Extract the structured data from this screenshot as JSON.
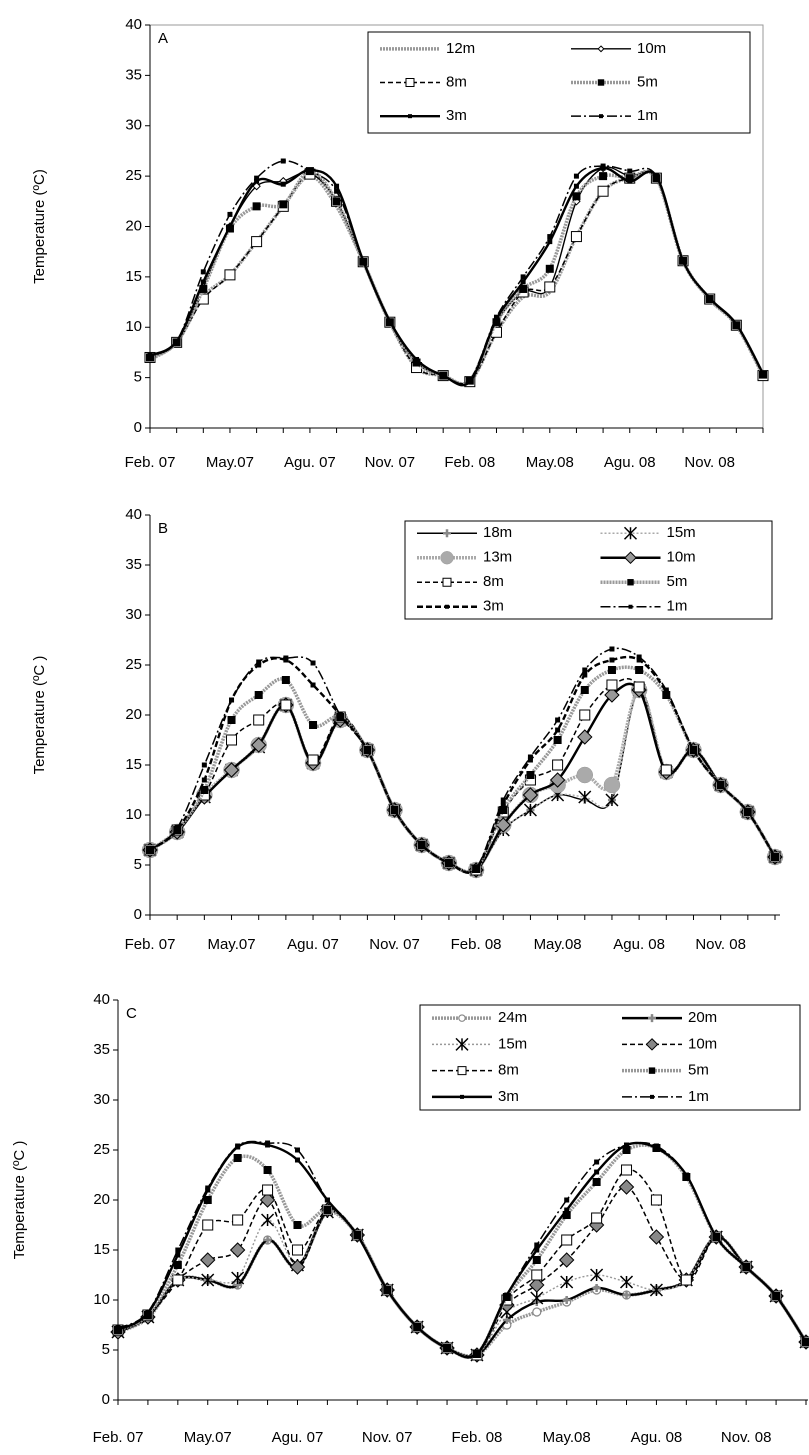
{
  "chart_data": [
    {
      "type": "line",
      "panel_label": "A",
      "y_label": "Temperature (ºC)",
      "legend": "upper right",
      "frame": true,
      "categories": [
        "Feb. 07",
        null,
        null,
        "May.07",
        null,
        null,
        "Agu. 07",
        null,
        null,
        "Nov. 07",
        null,
        null,
        "Feb. 08",
        null,
        null,
        "May.08",
        null,
        null,
        "Agu. 08",
        null,
        null,
        "Nov. 08",
        null,
        null
      ],
      "ylim": [
        0,
        40
      ],
      "yticks": [
        0,
        5,
        10,
        15,
        20,
        25,
        30,
        35,
        40
      ],
      "series": [
        {
          "name": "12m",
          "color": "#999999",
          "dash": "dot-thick",
          "marker": "none",
          "marker_color": "#999999",
          "values": [
            6.8,
            8.5,
            13,
            15.2,
            18.5,
            22,
            25,
            22,
            16.5,
            10.5,
            6,
            5.2,
            4.6,
            9.5,
            13,
            13.5,
            19,
            23.5,
            24.8,
            24.8,
            16.6,
            12.8,
            10.2,
            5.2
          ]
        },
        {
          "name": "10m",
          "color": "#000000",
          "dash": "solid",
          "marker": "diamond-small",
          "marker_color": "#000000",
          "values": [
            7,
            8.5,
            14,
            20,
            24,
            24.5,
            25.3,
            22.5,
            16.5,
            10.5,
            6.5,
            5.2,
            4.7,
            10.5,
            13.5,
            14,
            22.5,
            25.8,
            25,
            24.8,
            16.6,
            12.8,
            10.2,
            5.3
          ]
        },
        {
          "name": "8m",
          "color": "#000000",
          "dash": "dash",
          "marker": "square-open",
          "marker_color": "#000000",
          "values": [
            7,
            8.5,
            12.8,
            15.2,
            18.5,
            22,
            25.2,
            22.5,
            16.5,
            10.5,
            6,
            5.2,
            4.6,
            9.5,
            13.5,
            14,
            19,
            23.5,
            24.8,
            24.8,
            16.6,
            12.8,
            10.2,
            5.2
          ]
        },
        {
          "name": "5m",
          "color": "#999999",
          "dash": "dot-thick",
          "marker": "square",
          "marker_color": "#000000",
          "values": [
            7,
            8.5,
            13.8,
            19.8,
            22,
            22.2,
            25.5,
            22.5,
            16.5,
            10.5,
            6.5,
            5.2,
            4.7,
            10.5,
            13.8,
            15.8,
            23,
            25,
            24.8,
            24.8,
            16.6,
            12.8,
            10.2,
            5.3
          ]
        },
        {
          "name": "3m",
          "color": "#000000",
          "dash": "solid-thick",
          "marker": "square-small",
          "marker_color": "#000000",
          "values": [
            7.2,
            8.6,
            14.5,
            20,
            24.5,
            24.2,
            25.6,
            24,
            16.6,
            10.6,
            6.8,
            5.2,
            4.6,
            10.8,
            14.5,
            18.5,
            24,
            25.8,
            24.5,
            25,
            16.6,
            12.9,
            10.3,
            5.4
          ]
        },
        {
          "name": "1m",
          "color": "#000000",
          "dash": "dashdot",
          "marker": "square-small",
          "marker_color": "#000000",
          "values": [
            7.2,
            8.6,
            15.5,
            21.2,
            24.8,
            26.5,
            25.5,
            23.5,
            16.6,
            10.6,
            6.8,
            5.2,
            4.8,
            11,
            15,
            19,
            25,
            26,
            25.5,
            25,
            16.6,
            12.9,
            10.3,
            5.4
          ]
        }
      ]
    },
    {
      "type": "line",
      "panel_label": "B",
      "y_label": "Temperature (ºC )",
      "legend": "upper right",
      "frame": false,
      "categories": [
        "Feb. 07",
        null,
        null,
        "May.07",
        null,
        null,
        "Agu. 07",
        null,
        null,
        "Nov. 07",
        null,
        null,
        "Feb. 08",
        null,
        null,
        "May.08",
        null,
        null,
        "Agu. 08",
        null,
        null,
        "Nov. 08",
        null,
        null
      ],
      "ylim": [
        0,
        40
      ],
      "yticks": [
        0,
        5,
        10,
        15,
        20,
        25,
        30,
        35,
        40
      ],
      "series": [
        {
          "name": "18m",
          "color": "#000000",
          "dash": "solid",
          "marker": "plus",
          "marker_color": "#888888",
          "values": [
            6.5,
            8.3,
            11.8,
            14.5,
            16.8,
            21,
            15,
            19.5,
            16.5,
            10.5,
            7,
            5.2,
            4.5,
            8.5,
            10.5,
            12,
            11.5,
            11.5,
            22.5,
            14.3,
            16.5,
            13,
            10.3,
            5.8
          ]
        },
        {
          "name": "15m",
          "color": "#aaaaaa",
          "dash": "dot",
          "marker": "star",
          "marker_color": "#000000",
          "values": [
            6.5,
            8.3,
            11.8,
            14.5,
            16.8,
            21,
            15.2,
            19.5,
            16.5,
            10.5,
            7,
            5.2,
            4.5,
            8.5,
            10.5,
            12,
            11.8,
            11.5,
            22.5,
            14.3,
            16.5,
            13,
            10.3,
            5.8
          ]
        },
        {
          "name": "13m",
          "color": "#aaaaaa",
          "dash": "dot-thick",
          "marker": "circle",
          "marker_color": "#aaaaaa",
          "values": [
            6.5,
            8.3,
            12,
            14.5,
            17,
            21,
            15.2,
            19.5,
            16.5,
            10.5,
            7,
            5.2,
            4.5,
            9,
            12,
            13,
            14,
            13,
            22.5,
            14.3,
            16.5,
            13,
            10.3,
            5.8
          ]
        },
        {
          "name": "10m",
          "color": "#000000",
          "dash": "solid-thick",
          "marker": "diamond",
          "marker_color": "#999999",
          "values": [
            6.5,
            8.3,
            11.8,
            14.5,
            17,
            21,
            15.2,
            19.5,
            16.5,
            10.5,
            7,
            5.2,
            4.5,
            9,
            12,
            13.5,
            17.8,
            22,
            22.5,
            14.3,
            16.5,
            13,
            10.3,
            5.8
          ]
        },
        {
          "name": "8m",
          "color": "#000000",
          "dash": "dash",
          "marker": "square-open",
          "marker_color": "#000000",
          "values": [
            6.5,
            8.5,
            12,
            17.5,
            19.5,
            21,
            15.5,
            19.8,
            16.5,
            10.5,
            7,
            5.2,
            4.5,
            10.3,
            13.5,
            15,
            20,
            23,
            22.8,
            14.5,
            16.5,
            13,
            10.3,
            5.8
          ]
        },
        {
          "name": "5m",
          "color": "#999999",
          "dash": "dot-thick",
          "marker": "square",
          "marker_color": "#000000",
          "values": [
            6.5,
            8.5,
            12.5,
            19.5,
            22,
            23.5,
            19,
            19.8,
            16.5,
            10.5,
            7,
            5.2,
            4.6,
            10.5,
            14,
            17.5,
            22.5,
            24.5,
            24.5,
            22,
            16.5,
            13,
            10.3,
            5.8
          ]
        },
        {
          "name": "3m",
          "color": "#000000",
          "dash": "dash-thick",
          "marker": "square-small",
          "marker_color": "#000000",
          "values": [
            6.5,
            8.5,
            13.5,
            21.5,
            25,
            25.5,
            23,
            20,
            16.5,
            10.5,
            7,
            5.2,
            4.6,
            11,
            15.5,
            18.5,
            24,
            25.5,
            25.5,
            22.3,
            16.5,
            13,
            10.3,
            5.8
          ]
        },
        {
          "name": "1m",
          "color": "#000000",
          "dash": "dashdot",
          "marker": "square-small",
          "marker_color": "#000000",
          "values": [
            6.5,
            8.7,
            15,
            21.5,
            25.3,
            25.7,
            25.2,
            20,
            16.5,
            10.5,
            7,
            5.2,
            4.7,
            11.5,
            15.8,
            19.5,
            24.5,
            26.6,
            25.8,
            22.5,
            16.5,
            13,
            10.3,
            5.8
          ]
        }
      ]
    },
    {
      "type": "line",
      "panel_label": "C",
      "y_label": "Temperature (ºC )",
      "legend": "upper right",
      "frame": false,
      "categories": [
        "Feb. 07",
        null,
        null,
        "May.07",
        null,
        null,
        "Agu. 07",
        null,
        null,
        "Nov. 07",
        null,
        null,
        "Feb. 08",
        null,
        null,
        "May.08",
        null,
        null,
        "Agu. 08",
        null,
        null,
        "Nov. 08",
        null,
        null
      ],
      "ylim": [
        0,
        40
      ],
      "yticks": [
        0,
        5,
        10,
        15,
        20,
        25,
        30,
        35,
        40
      ],
      "series": [
        {
          "name": "24m",
          "color": "#999999",
          "dash": "dot-thick",
          "marker": "circle-open",
          "marker_color": "#888888",
          "values": [
            6.8,
            8.2,
            12,
            12,
            11.5,
            16,
            13.3,
            18.8,
            16.5,
            11,
            7.3,
            5.2,
            4.5,
            7.5,
            8.8,
            9.8,
            11,
            10.5,
            11,
            12,
            16.3,
            13.3,
            10.4,
            5.8
          ]
        },
        {
          "name": "20m",
          "color": "#000000",
          "dash": "solid-thick",
          "marker": "plus",
          "marker_color": "#888888",
          "values": [
            6.8,
            8.3,
            12,
            12,
            11.5,
            16,
            13.3,
            18.8,
            16.5,
            11,
            7.3,
            5.2,
            4.5,
            8,
            9.8,
            10,
            11.2,
            10.5,
            11,
            12,
            16.3,
            13.3,
            10.4,
            5.8
          ]
        },
        {
          "name": "15m",
          "color": "#999999",
          "dash": "dot",
          "marker": "star",
          "marker_color": "#000000",
          "values": [
            6.8,
            8.3,
            12,
            12,
            12.2,
            18,
            13.5,
            18.8,
            16.5,
            11,
            7.3,
            5.2,
            4.5,
            8.8,
            10.2,
            11.8,
            12.5,
            11.8,
            11,
            12,
            16.3,
            13.3,
            10.4,
            5.8
          ]
        },
        {
          "name": "10m",
          "color": "#000000",
          "dash": "dash",
          "marker": "diamond",
          "marker_color": "#888888",
          "values": [
            6.8,
            8.3,
            12,
            14,
            15,
            20,
            13.3,
            19,
            16.5,
            11,
            7.3,
            5.2,
            4.5,
            9.5,
            11.5,
            14,
            17.5,
            21.3,
            16.3,
            12,
            16.3,
            13.3,
            10.4,
            5.8
          ]
        },
        {
          "name": "8m",
          "color": "#000000",
          "dash": "dash",
          "marker": "square-open",
          "marker_color": "#000000",
          "values": [
            7,
            8.5,
            12,
            17.5,
            18,
            21,
            15,
            19,
            16.5,
            11,
            7.3,
            5.2,
            4.5,
            10,
            12.5,
            16,
            18.2,
            23,
            20,
            12,
            16.3,
            13.3,
            10.4,
            5.8
          ]
        },
        {
          "name": "5m",
          "color": "#999999",
          "dash": "dot-thick",
          "marker": "square",
          "marker_color": "#000000",
          "values": [
            7,
            8.5,
            13.5,
            20,
            24.2,
            23,
            17.5,
            19,
            16.5,
            11,
            7.3,
            5.2,
            4.6,
            10.3,
            14,
            18.5,
            21.8,
            25,
            25.2,
            22.3,
            16.3,
            13.3,
            10.4,
            5.8
          ]
        },
        {
          "name": "3m",
          "color": "#000000",
          "dash": "solid-thick",
          "marker": "square-small",
          "marker_color": "#000000",
          "values": [
            7,
            8.7,
            14.5,
            21,
            25.3,
            25.5,
            24,
            20,
            16.5,
            11,
            7.3,
            5.2,
            4.6,
            10.5,
            15,
            19,
            22.8,
            25.5,
            25.2,
            22.5,
            16.3,
            13.3,
            10.4,
            5.8
          ]
        },
        {
          "name": "1m",
          "color": "#000000",
          "dash": "dashdot",
          "marker": "square-small",
          "marker_color": "#000000",
          "values": [
            7.2,
            8.8,
            15,
            21.2,
            25.4,
            25.7,
            25,
            20,
            16.5,
            11,
            7.3,
            5.2,
            4.7,
            10.5,
            15.5,
            20,
            23.8,
            25.5,
            25.4,
            22.5,
            16.3,
            13.3,
            10.4,
            5.8
          ]
        }
      ]
    }
  ]
}
